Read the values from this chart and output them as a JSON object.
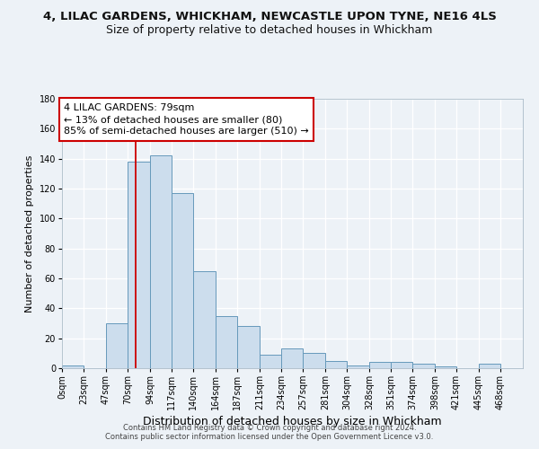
{
  "title": "4, LILAC GARDENS, WHICKHAM, NEWCASTLE UPON TYNE, NE16 4LS",
  "subtitle": "Size of property relative to detached houses in Whickham",
  "xlabel": "Distribution of detached houses by size in Whickham",
  "ylabel": "Number of detached properties",
  "bar_color": "#ccdded",
  "bar_edge_color": "#6699bb",
  "background_color": "#edf2f7",
  "grid_color": "white",
  "bin_edges": [
    0,
    23,
    47,
    70,
    94,
    117,
    140,
    164,
    187,
    211,
    234,
    257,
    281,
    304,
    328,
    351,
    374,
    398,
    421,
    445,
    468,
    492
  ],
  "bin_labels": [
    "0sqm",
    "23sqm",
    "47sqm",
    "70sqm",
    "94sqm",
    "117sqm",
    "140sqm",
    "164sqm",
    "187sqm",
    "211sqm",
    "234sqm",
    "257sqm",
    "281sqm",
    "304sqm",
    "328sqm",
    "351sqm",
    "374sqm",
    "398sqm",
    "421sqm",
    "445sqm",
    "468sqm"
  ],
  "counts": [
    2,
    0,
    30,
    138,
    142,
    117,
    65,
    35,
    28,
    9,
    13,
    10,
    5,
    2,
    4,
    4,
    3,
    1,
    0,
    3,
    0
  ],
  "vline_x": 79,
  "vline_color": "#cc0000",
  "annotation_line1": "4 LILAC GARDENS: 79sqm",
  "annotation_line2": "← 13% of detached houses are smaller (80)",
  "annotation_line3": "85% of semi-detached houses are larger (510) →",
  "annotation_box_color": "white",
  "annotation_box_edge_color": "#cc0000",
  "ylim": [
    0,
    180
  ],
  "yticks": [
    0,
    20,
    40,
    60,
    80,
    100,
    120,
    140,
    160,
    180
  ],
  "footer_line1": "Contains HM Land Registry data © Crown copyright and database right 2024.",
  "footer_line2": "Contains public sector information licensed under the Open Government Licence v3.0.",
  "title_fontsize": 9.5,
  "subtitle_fontsize": 9,
  "xlabel_fontsize": 9,
  "ylabel_fontsize": 8,
  "tick_fontsize": 7,
  "annotation_fontsize": 8,
  "footer_fontsize": 6
}
